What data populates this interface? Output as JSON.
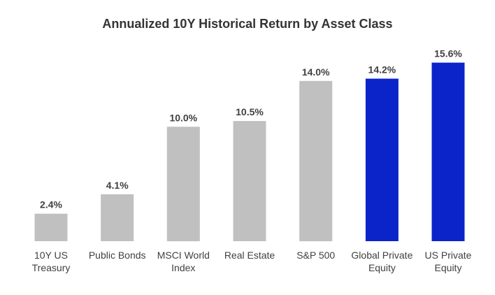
{
  "chart_data": {
    "type": "bar",
    "title": "Annualized 10Y Historical Return by Asset Class",
    "xlabel": "",
    "ylabel": "",
    "ylim": [
      0,
      16
    ],
    "grid": false,
    "legend": "none",
    "categories": [
      [
        "10Y US",
        "Treasury"
      ],
      [
        "Public Bonds"
      ],
      [
        "MSCI World",
        "Index"
      ],
      [
        "Real Estate"
      ],
      [
        "S&P 500"
      ],
      [
        "Global Private",
        "Equity"
      ],
      [
        "US Private",
        "Equity"
      ]
    ],
    "values": [
      2.4,
      4.1,
      10.0,
      10.5,
      14.0,
      14.2,
      15.6
    ],
    "data_labels": [
      "2.4%",
      "4.1%",
      "10.0%",
      "10.5%",
      "14.0%",
      "14.2%",
      "15.6%"
    ],
    "bar_colors": [
      "#c0c0c0",
      "#c0c0c0",
      "#c0c0c0",
      "#c0c0c0",
      "#c0c0c0",
      "#0b24c9",
      "#0b24c9"
    ]
  }
}
